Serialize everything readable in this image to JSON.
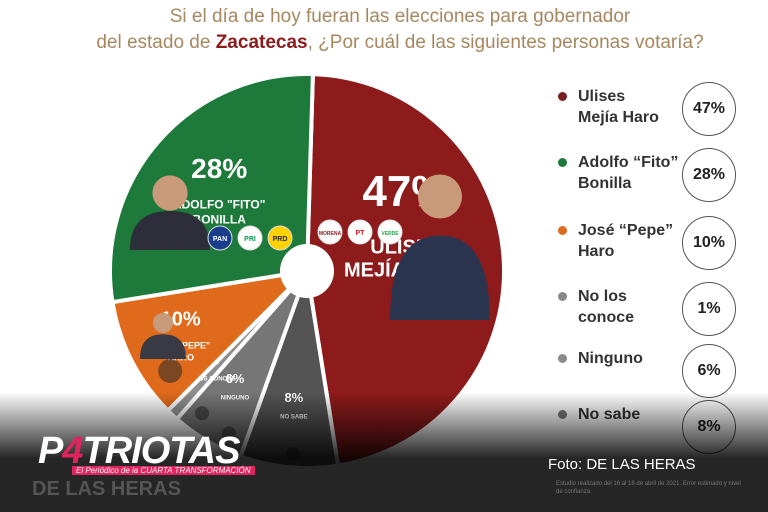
{
  "title": {
    "line1": "Si el día de hoy fueran las elecciones para gobernador",
    "line2_pre": "del estado de ",
    "line2_bold": "Zacatecas",
    "line2_post": ",  ¿Por cuál de las siguientes personas votaría?"
  },
  "chart_data": {
    "type": "pie",
    "slices": [
      {
        "label": "Ulises Mejía Haro",
        "value": 47,
        "pct_text": "47%",
        "name_text": "ULISES\nMEJÍA HARO",
        "color": "#8e1b1b"
      },
      {
        "label": "No sabe",
        "value": 8,
        "pct_text": "8%",
        "name_text": "NO SABE",
        "color": "#545454"
      },
      {
        "label": "Ninguno",
        "value": 6,
        "pct_text": "6%",
        "name_text": "NINGUNO",
        "color": "#767676"
      },
      {
        "label": "No los conoce",
        "value": 1,
        "pct_text": "1%",
        "name_text": "NO LOS CONOCE",
        "color": "#8f8f8f"
      },
      {
        "label": "José \"Pepe\" Haro",
        "value": 10,
        "pct_text": "10%",
        "name_text": "JOSÉ \"PEPE\"\nHARO",
        "color": "#e06a1b"
      },
      {
        "label": "Adolfo \"Fito\" Bonilla",
        "value": 28,
        "pct_text": "28%",
        "name_text": "ADOLFO \"FITO\"\nBONILLA",
        "color": "#1d7a3a"
      }
    ],
    "party_logos": [
      "PAN",
      "PRI",
      "PRD",
      "MORENA",
      "PT",
      "VERDE"
    ]
  },
  "legend": [
    {
      "label": "Ulises\nMejía Haro",
      "pct": "47%",
      "color": "#7a1f1f"
    },
    {
      "label": "Adolfo “Fito”\nBonilla",
      "pct": "28%",
      "color": "#1d7a3a"
    },
    {
      "label": "José “Pepe”\nHaro",
      "pct": "10%",
      "color": "#e06a1b"
    },
    {
      "label": "No los\nconoce",
      "pct": "1%",
      "color": "#8a8a8a"
    },
    {
      "label": "Ninguno",
      "pct": "6%",
      "color": "#8a8a8a"
    },
    {
      "label": "No sabe",
      "pct": "8%",
      "color": "#777777"
    }
  ],
  "footer": {
    "logo_pre": "P",
    "logo_four": "4",
    "logo_post": "TRIOTAS",
    "tagline": "El Periódico de la CUARTA TRANSFORMACIÓN",
    "brand": "DE LAS HERAS",
    "credit": "Foto: DE LAS HERAS",
    "fine_print": "Estudio realizado del 16 al 18 de abril de 2021. Error estimado y nivel de confianza."
  }
}
